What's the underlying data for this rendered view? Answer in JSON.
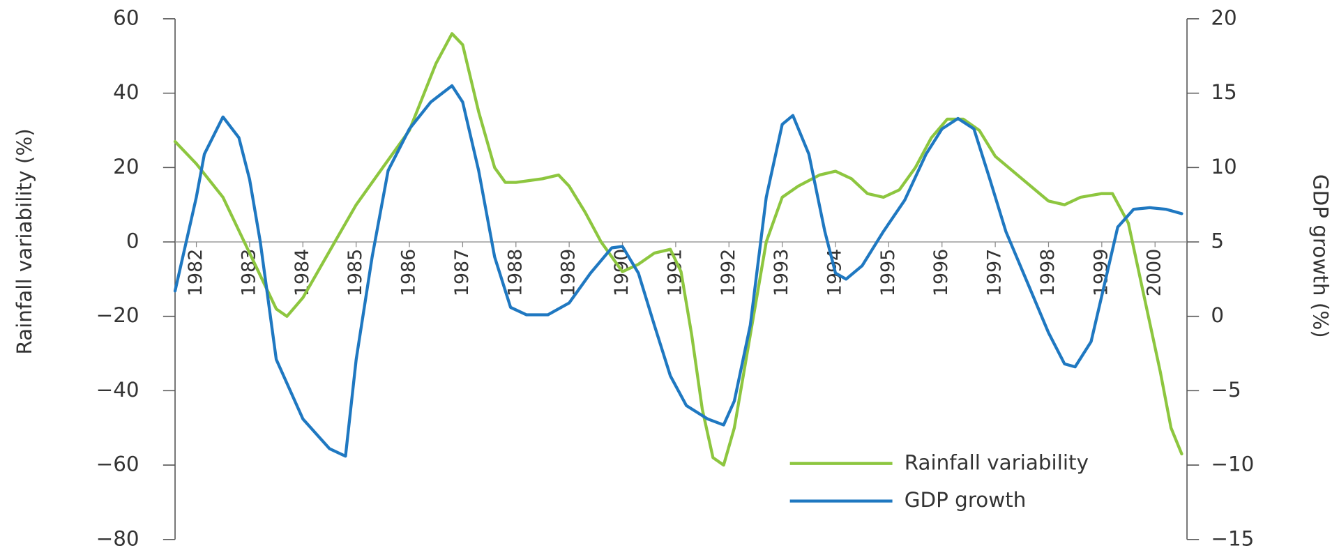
{
  "chart_data": {
    "type": "line",
    "y_label": "Rainfall variability (%)",
    "y2_label": "GDP growth (%)",
    "xlim": [
      1981.6,
      2000.6
    ],
    "xticks": [
      1982,
      1983,
      1984,
      1985,
      1986,
      1987,
      1988,
      1989,
      1990,
      1991,
      1992,
      1993,
      1994,
      1995,
      1996,
      1997,
      1998,
      1999,
      2000
    ],
    "ylim": [
      -80,
      60
    ],
    "yticks": [
      60,
      40,
      20,
      0,
      {
        "value": -20,
        "label": "−20"
      },
      {
        "value": -40,
        "label": "−40"
      },
      {
        "value": -60,
        "label": "−60"
      },
      {
        "value": -80,
        "label": "−80"
      }
    ],
    "y2lim": [
      -15,
      20
    ],
    "y2ticks": [
      20,
      15,
      10,
      5,
      0,
      {
        "value": -5,
        "label": "−5"
      },
      {
        "value": -10,
        "label": "−10"
      },
      {
        "value": -15,
        "label": "−15"
      }
    ],
    "legend": "lower right",
    "series": [
      {
        "name": "Rainfall variability",
        "color": "#8dc63f",
        "x": [
          1981.6,
          1982,
          1982.5,
          1983,
          1983.5,
          1983.7,
          1984,
          1984.6,
          1985,
          1985.5,
          1986,
          1986.5,
          1986.8,
          1987,
          1987.3,
          1987.6,
          1987.8,
          1988,
          1988.5,
          1988.8,
          1989,
          1989.3,
          1989.6,
          1990,
          1990.3,
          1990.6,
          1990.9,
          1991.1,
          1991.3,
          1991.5,
          1991.7,
          1991.9,
          1992.1,
          1992.4,
          1992.7,
          1993,
          1993.3,
          1993.7,
          1994,
          1994.3,
          1994.6,
          1994.9,
          1995.2,
          1995.5,
          1995.8,
          1996.1,
          1996.4,
          1996.7,
          1997,
          1997.5,
          1998,
          1998.3,
          1998.6,
          1999,
          1999.2,
          1999.5,
          1999.8,
          2000.1,
          2000.3,
          2000.5
        ],
        "values": [
          27,
          21,
          12,
          -3,
          -18,
          -20,
          -15,
          0,
          10,
          20,
          30,
          48,
          56,
          53,
          35,
          20,
          16,
          16,
          17,
          18,
          15,
          8,
          0,
          -8,
          -6,
          -3,
          -2,
          -8,
          -25,
          -45,
          -58,
          -60,
          -50,
          -25,
          0,
          12,
          15,
          18,
          19,
          17,
          13,
          12,
          14,
          20,
          28,
          33,
          33,
          30,
          23,
          17,
          11,
          10,
          12,
          13,
          13,
          5,
          -15,
          -35,
          -50,
          -57
        ]
      },
      {
        "name": "GDP growth",
        "color": "#1f78c1",
        "axis": "y2",
        "x": [
          1981.6,
          1982,
          1982.15,
          1982.5,
          1982.8,
          1983,
          1983.2,
          1983.5,
          1984,
          1984.5,
          1984.8,
          1985,
          1985.3,
          1985.6,
          1986,
          1986.4,
          1986.8,
          1987,
          1987.3,
          1987.6,
          1987.9,
          1988.2,
          1988.6,
          1989,
          1989.4,
          1989.8,
          1990,
          1990.3,
          1990.6,
          1990.9,
          1991.2,
          1991.6,
          1991.9,
          1992.1,
          1992.4,
          1992.7,
          1993,
          1993.2,
          1993.5,
          1993.8,
          1994,
          1994.2,
          1994.5,
          1994.9,
          1995.3,
          1995.7,
          1996,
          1996.3,
          1996.6,
          1996.9,
          1997.2,
          1997.6,
          1998,
          1998.3,
          1998.5,
          1998.8,
          1999.1,
          1999.3,
          1999.6,
          1999.9,
          2000.2,
          2000.5
        ],
        "values": [
          1.7,
          8,
          10.9,
          13.4,
          12,
          9.2,
          5,
          -2.9,
          -6.9,
          -8.9,
          -9.4,
          -2.9,
          4,
          9.8,
          12.6,
          14.4,
          15.5,
          14.4,
          9.8,
          4,
          0.6,
          0.1,
          0.1,
          0.9,
          2.9,
          4.6,
          4.7,
          2.9,
          -0.6,
          -4,
          -6,
          -6.9,
          -7.3,
          -5.7,
          -0.6,
          8,
          12.9,
          13.5,
          10.9,
          5.7,
          2.9,
          2.5,
          3.4,
          5.7,
          7.8,
          10.9,
          12.6,
          13.3,
          12.6,
          9.2,
          5.7,
          2.3,
          -1.1,
          -3.2,
          -3.4,
          -1.7,
          2.9,
          6,
          7.2,
          7.3,
          7.2,
          6.9
        ]
      }
    ]
  }
}
